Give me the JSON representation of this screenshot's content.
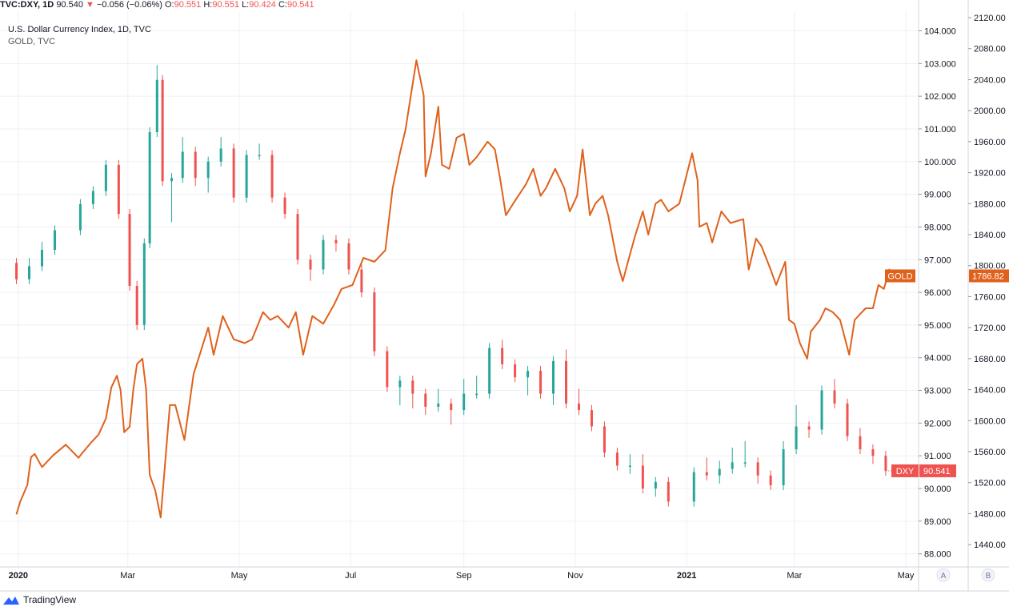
{
  "header": {
    "symbol": "TVC:DXY, 1D",
    "last": "90.540",
    "change": "−0.056 (−0.06%)",
    "o_label": "O:",
    "o_value": "90.551",
    "h_label": "H:",
    "h_value": "90.551",
    "l_label": "L:",
    "l_value": "90.424",
    "c_label": "C:",
    "c_value": "90.541",
    "down_arrow": "▼"
  },
  "legend": {
    "main": "U.S. Dollar Currency Index, 1D, TVC",
    "overlay": "GOLD, TVC"
  },
  "footer": {
    "brand": "TradingView",
    "logo_icon": "tradingview-cloud-icon"
  },
  "scale_buttons": [
    "A",
    "B"
  ],
  "colors": {
    "up": "#26a69a",
    "down": "#ef5350",
    "gold": "#e0611b",
    "grid": "#eef0f3"
  },
  "chart_data": {
    "type": "candlestick_with_line_overlay",
    "x_ticks": [
      "2020",
      "Mar",
      "May",
      "Jul",
      "Sep",
      "Nov",
      "2021",
      "Mar",
      "May"
    ],
    "left_axis": {
      "label": "DXY",
      "ticks": [
        "104.000",
        "103.000",
        "102.000",
        "101.000",
        "100.000",
        "99.000",
        "98.000",
        "97.000",
        "96.000",
        "95.000",
        "94.000",
        "93.000",
        "92.000",
        "91.000",
        "90.000",
        "89.000",
        "88.000"
      ],
      "range": [
        87.6,
        104.6
      ]
    },
    "right_axis": {
      "label": "GOLD",
      "ticks": [
        "2120.00",
        "2080.00",
        "2040.00",
        "2000.00",
        "1960.00",
        "1920.00",
        "1880.00",
        "1840.00",
        "1800.00",
        "1760.00",
        "1720.00",
        "1680.00",
        "1640.00",
        "1600.00",
        "1560.00",
        "1520.00",
        "1480.00",
        "1440.00"
      ],
      "range": [
        1411.2,
        2128.3
      ]
    },
    "series": [
      {
        "name": "DXY",
        "kind": "candlestick",
        "last_label": "90.541",
        "points": [
          [
            "2019-12-31",
            96.9,
            96.6,
            96.4,
            96.4
          ],
          [
            "2020-01-07",
            96.4,
            96.9,
            96.7,
            96.8
          ],
          [
            "2020-01-14",
            96.8,
            97.1,
            97.4,
            97.3
          ],
          [
            "2020-01-21",
            97.3,
            97.5,
            97.9,
            97.9
          ],
          [
            "2020-02-04",
            97.9,
            98.4,
            98.4,
            98.7
          ],
          [
            "2020-02-11",
            98.7,
            99.1,
            99.0,
            99.1
          ],
          [
            "2020-02-18",
            99.1,
            99.8,
            99.7,
            99.9
          ],
          [
            "2020-02-25",
            99.9,
            98.6,
            98.6,
            98.4
          ],
          [
            "2020-03-02",
            98.4,
            97.1,
            96.8,
            96.2
          ],
          [
            "2020-03-06",
            96.2,
            95.6,
            95.2,
            95.0
          ],
          [
            "2020-03-10",
            95.0,
            96.3,
            96.7,
            97.5
          ],
          [
            "2020-03-13",
            97.5,
            98.7,
            99.5,
            100.9
          ],
          [
            "2020-03-17",
            100.9,
            102.3,
            102.8,
            102.5
          ],
          [
            "2020-03-20",
            102.5,
            102.0,
            101.0,
            99.4
          ],
          [
            "2020-03-25",
            99.4,
            98.3,
            99.1,
            99.5
          ],
          [
            "2020-03-31",
            99.5,
            100.3,
            100.6,
            100.3
          ],
          [
            "2020-04-07",
            100.3,
            99.9,
            99.4,
            99.5
          ],
          [
            "2020-04-14",
            99.5,
            99.2,
            99.6,
            100.0
          ],
          [
            "2020-04-21",
            100.0,
            100.5,
            100.6,
            100.4
          ],
          [
            "2020-04-28",
            100.4,
            99.4,
            99.1,
            98.9
          ],
          [
            "2020-05-05",
            98.9,
            99.7,
            100.2,
            100.2
          ],
          [
            "2020-05-12",
            100.2,
            100.4,
            100.3,
            100.2
          ],
          [
            "2020-05-19",
            100.2,
            99.6,
            99.3,
            98.9
          ],
          [
            "2020-05-26",
            98.9,
            98.8,
            98.4,
            98.4
          ],
          [
            "2020-06-02",
            98.4,
            97.6,
            97.2,
            97.0
          ],
          [
            "2020-06-09",
            97.0,
            96.6,
            96.5,
            96.7
          ],
          [
            "2020-06-16",
            96.7,
            97.2,
            97.5,
            97.6
          ],
          [
            "2020-06-23",
            97.6,
            97.4,
            97.4,
            97.5
          ],
          [
            "2020-06-30",
            97.5,
            97.1,
            96.9,
            96.7
          ],
          [
            "2020-07-07",
            96.7,
            96.6,
            96.4,
            96.0
          ],
          [
            "2020-07-14",
            96.0,
            95.2,
            94.9,
            94.2
          ],
          [
            "2020-07-21",
            94.2,
            93.6,
            93.2,
            93.1
          ],
          [
            "2020-07-28",
            93.1,
            92.7,
            93.1,
            93.3
          ],
          [
            "2020-08-04",
            93.3,
            92.8,
            92.6,
            92.9
          ],
          [
            "2020-08-11",
            92.9,
            92.7,
            92.4,
            92.5
          ],
          [
            "2020-08-18",
            92.5,
            92.9,
            92.8,
            92.6
          ],
          [
            "2020-08-25",
            92.6,
            92.3,
            92.1,
            92.4
          ],
          [
            "2020-09-01",
            92.4,
            92.9,
            93.2,
            92.9
          ],
          [
            "2020-09-08",
            92.9,
            93.3,
            93.1,
            92.9
          ],
          [
            "2020-09-15",
            92.9,
            93.4,
            93.9,
            94.3
          ],
          [
            "2020-09-22",
            94.3,
            94.4,
            94.0,
            93.8
          ],
          [
            "2020-09-29",
            93.8,
            93.7,
            93.6,
            93.4
          ],
          [
            "2020-10-06",
            93.4,
            93.0,
            93.3,
            93.6
          ],
          [
            "2020-10-13",
            93.6,
            93.3,
            92.9,
            92.9
          ],
          [
            "2020-10-20",
            92.9,
            92.7,
            93.2,
            93.9
          ],
          [
            "2020-10-27",
            93.9,
            94.1,
            93.2,
            92.6
          ],
          [
            "2020-11-03",
            92.6,
            92.9,
            92.5,
            92.4
          ],
          [
            "2020-11-10",
            92.4,
            92.2,
            92.2,
            91.9
          ],
          [
            "2020-11-17",
            91.9,
            91.8,
            91.4,
            91.1
          ],
          [
            "2020-11-24",
            91.1,
            90.8,
            90.7,
            90.7
          ],
          [
            "2020-12-01",
            90.7,
            90.6,
            90.9,
            90.7
          ],
          [
            "2020-12-08",
            90.7,
            90.9,
            90.3,
            90.0
          ],
          [
            "2020-12-15",
            90.0,
            89.9,
            90.0,
            90.2
          ],
          [
            "2020-12-22",
            90.2,
            90.0,
            89.7,
            89.6
          ],
          [
            "2021-01-05",
            89.6,
            89.9,
            90.3,
            90.5
          ],
          [
            "2021-01-12",
            90.5,
            90.8,
            90.8,
            90.4
          ],
          [
            "2021-01-19",
            90.4,
            90.3,
            90.7,
            90.6
          ],
          [
            "2021-01-26",
            90.6,
            91.0,
            91.1,
            90.8
          ],
          [
            "2021-02-02",
            90.8,
            91.3,
            90.9,
            90.8
          ],
          [
            "2021-02-09",
            90.8,
            90.6,
            90.3,
            90.4
          ],
          [
            "2021-02-16",
            90.4,
            90.2,
            90.4,
            90.1
          ],
          [
            "2021-02-23",
            90.1,
            90.9,
            91.3,
            91.2
          ],
          [
            "2021-03-02",
            91.2,
            91.7,
            92.4,
            91.9
          ],
          [
            "2021-03-09",
            91.9,
            91.7,
            91.9,
            91.8
          ],
          [
            "2021-03-16",
            91.8,
            92.4,
            92.7,
            93.0
          ],
          [
            "2021-03-23",
            93.0,
            93.2,
            93.0,
            92.6
          ],
          [
            "2021-03-30",
            92.6,
            92.1,
            91.9,
            91.6
          ],
          [
            "2021-04-06",
            91.6,
            91.7,
            91.5,
            91.2
          ],
          [
            "2021-04-13",
            91.2,
            91.0,
            90.9,
            91.0
          ],
          [
            "2021-04-20",
            91.0,
            90.8,
            90.6,
            90.541
          ]
        ]
      },
      {
        "name": "GOLD",
        "kind": "line",
        "last_label": "1786.82",
        "points": [
          [
            "2019-12-31",
            1479
          ],
          [
            "2020-01-02",
            1495
          ],
          [
            "2020-01-06",
            1517
          ],
          [
            "2020-01-08",
            1553
          ],
          [
            "2020-01-10",
            1557
          ],
          [
            "2020-01-14",
            1540
          ],
          [
            "2020-01-20",
            1555
          ],
          [
            "2020-01-27",
            1569
          ],
          [
            "2020-02-03",
            1552
          ],
          [
            "2020-02-05",
            1558
          ],
          [
            "2020-02-10",
            1572
          ],
          [
            "2020-02-14",
            1582
          ],
          [
            "2020-02-18",
            1603
          ],
          [
            "2020-02-21",
            1643
          ],
          [
            "2020-02-24",
            1658
          ],
          [
            "2020-02-26",
            1640
          ],
          [
            "2020-02-28",
            1585
          ],
          [
            "2020-03-02",
            1592
          ],
          [
            "2020-03-04",
            1640
          ],
          [
            "2020-03-06",
            1673
          ],
          [
            "2020-03-09",
            1680
          ],
          [
            "2020-03-11",
            1640
          ],
          [
            "2020-03-13",
            1530
          ],
          [
            "2020-03-16",
            1510
          ],
          [
            "2020-03-19",
            1475
          ],
          [
            "2020-03-24",
            1620
          ],
          [
            "2020-03-27",
            1620
          ],
          [
            "2020-04-01",
            1575
          ],
          [
            "2020-04-06",
            1660
          ],
          [
            "2020-04-10",
            1690
          ],
          [
            "2020-04-14",
            1720
          ],
          [
            "2020-04-17",
            1685
          ],
          [
            "2020-04-22",
            1735
          ],
          [
            "2020-04-28",
            1705
          ],
          [
            "2020-05-04",
            1700
          ],
          [
            "2020-05-08",
            1705
          ],
          [
            "2020-05-14",
            1740
          ],
          [
            "2020-05-18",
            1730
          ],
          [
            "2020-05-22",
            1735
          ],
          [
            "2020-05-28",
            1720
          ],
          [
            "2020-06-01",
            1740
          ],
          [
            "2020-06-05",
            1685
          ],
          [
            "2020-06-10",
            1735
          ],
          [
            "2020-06-16",
            1725
          ],
          [
            "2020-06-22",
            1750
          ],
          [
            "2020-06-26",
            1770
          ],
          [
            "2020-07-02",
            1775
          ],
          [
            "2020-07-08",
            1810
          ],
          [
            "2020-07-14",
            1805
          ],
          [
            "2020-07-20",
            1820
          ],
          [
            "2020-07-24",
            1900
          ],
          [
            "2020-07-28",
            1945
          ],
          [
            "2020-07-31",
            1975
          ],
          [
            "2020-08-04",
            2035
          ],
          [
            "2020-08-06",
            2065
          ],
          [
            "2020-08-10",
            2020
          ],
          [
            "2020-08-11",
            1915
          ],
          [
            "2020-08-14",
            1945
          ],
          [
            "2020-08-18",
            2005
          ],
          [
            "2020-08-20",
            1930
          ],
          [
            "2020-08-24",
            1925
          ],
          [
            "2020-08-28",
            1965
          ],
          [
            "2020-09-01",
            1970
          ],
          [
            "2020-09-04",
            1930
          ],
          [
            "2020-09-08",
            1940
          ],
          [
            "2020-09-14",
            1960
          ],
          [
            "2020-09-18",
            1950
          ],
          [
            "2020-09-21",
            1910
          ],
          [
            "2020-09-24",
            1865
          ],
          [
            "2020-09-28",
            1880
          ],
          [
            "2020-10-05",
            1905
          ],
          [
            "2020-10-09",
            1925
          ],
          [
            "2020-10-13",
            1890
          ],
          [
            "2020-10-16",
            1900
          ],
          [
            "2020-10-21",
            1925
          ],
          [
            "2020-10-26",
            1900
          ],
          [
            "2020-10-29",
            1870
          ],
          [
            "2020-11-02",
            1890
          ],
          [
            "2020-11-05",
            1950
          ],
          [
            "2020-11-09",
            1865
          ],
          [
            "2020-11-12",
            1880
          ],
          [
            "2020-11-16",
            1890
          ],
          [
            "2020-11-19",
            1865
          ],
          [
            "2020-11-24",
            1805
          ],
          [
            "2020-11-27",
            1780
          ],
          [
            "2020-12-01",
            1815
          ],
          [
            "2020-12-04",
            1840
          ],
          [
            "2020-12-08",
            1870
          ],
          [
            "2020-12-11",
            1840
          ],
          [
            "2020-12-15",
            1880
          ],
          [
            "2020-12-18",
            1885
          ],
          [
            "2020-12-22",
            1870
          ],
          [
            "2020-12-28",
            1880
          ],
          [
            "2021-01-04",
            1945
          ],
          [
            "2021-01-07",
            1910
          ],
          [
            "2021-01-08",
            1850
          ],
          [
            "2021-01-12",
            1855
          ],
          [
            "2021-01-15",
            1830
          ],
          [
            "2021-01-20",
            1870
          ],
          [
            "2021-01-25",
            1855
          ],
          [
            "2021-02-01",
            1860
          ],
          [
            "2021-02-04",
            1795
          ],
          [
            "2021-02-08",
            1835
          ],
          [
            "2021-02-11",
            1825
          ],
          [
            "2021-02-16",
            1795
          ],
          [
            "2021-02-19",
            1775
          ],
          [
            "2021-02-24",
            1805
          ],
          [
            "2021-02-26",
            1730
          ],
          [
            "2021-03-01",
            1725
          ],
          [
            "2021-03-04",
            1700
          ],
          [
            "2021-03-08",
            1680
          ],
          [
            "2021-03-10",
            1715
          ],
          [
            "2021-03-15",
            1730
          ],
          [
            "2021-03-18",
            1745
          ],
          [
            "2021-03-22",
            1740
          ],
          [
            "2021-03-26",
            1730
          ],
          [
            "2021-03-31",
            1685
          ],
          [
            "2021-04-03",
            1730
          ],
          [
            "2021-04-07",
            1740
          ],
          [
            "2021-04-09",
            1745
          ],
          [
            "2021-04-13",
            1745
          ],
          [
            "2021-04-16",
            1775
          ],
          [
            "2021-04-19",
            1770
          ],
          [
            "2021-04-22",
            1795
          ],
          [
            "2021-04-26",
            1780
          ],
          [
            "2021-04-29",
            1786.82
          ]
        ]
      }
    ]
  }
}
